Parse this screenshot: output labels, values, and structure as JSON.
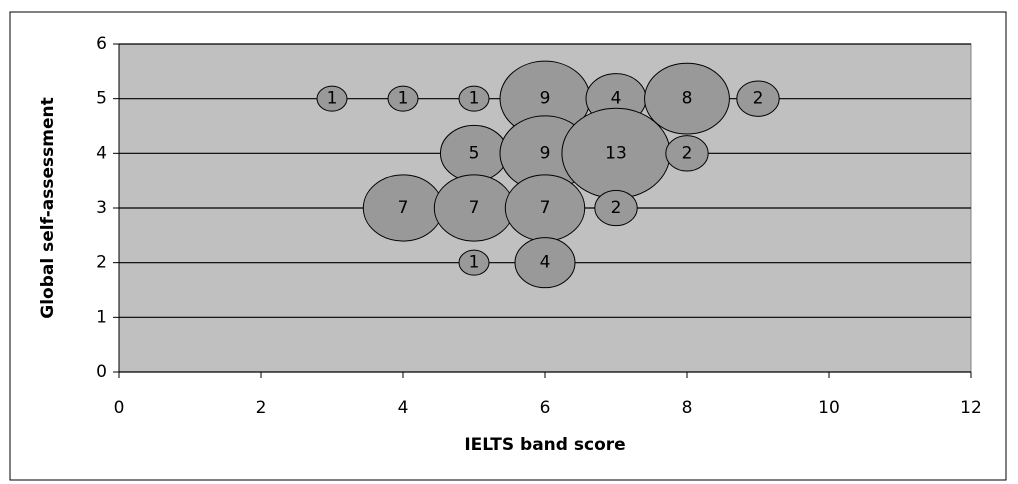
{
  "chart_data": {
    "type": "bubble",
    "x_label": "IELTS band score",
    "y_label": "Global self-assessment",
    "xlim": [
      0,
      12
    ],
    "xticks": [
      0,
      2,
      4,
      6,
      8,
      10,
      12
    ],
    "ylim": [
      0,
      6
    ],
    "yticks": [
      0,
      1,
      2,
      3,
      4,
      5,
      6
    ],
    "grid": true,
    "series": [
      {
        "color": "#999999",
        "x": [
          3,
          4,
          5,
          6,
          7,
          8,
          9,
          5,
          6,
          7,
          8,
          4,
          5,
          6,
          7,
          5,
          6
        ],
        "values": [
          5,
          5,
          5,
          5,
          5,
          5,
          5,
          4,
          4,
          4,
          4,
          3,
          3,
          3,
          3,
          2,
          2
        ],
        "sizes": [
          1,
          1,
          1,
          9,
          4,
          8,
          2,
          5,
          9,
          13,
          2,
          7,
          7,
          7,
          2,
          1,
          4
        ]
      }
    ]
  }
}
